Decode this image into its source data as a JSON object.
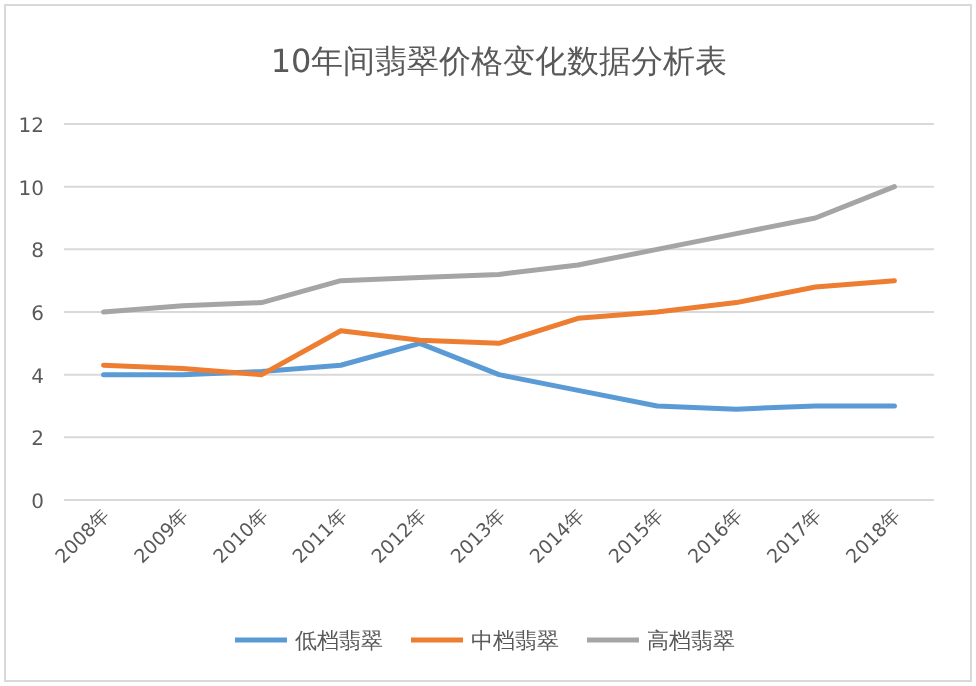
{
  "chart_data": {
    "type": "line",
    "title": "10年间翡翠价格变化数据分析表",
    "categories": [
      "2008年",
      "2009年",
      "2010年",
      "2011年",
      "2012年",
      "2013年",
      "2014年",
      "2015年",
      "2016年",
      "2017年",
      "2018年"
    ],
    "series": [
      {
        "name": "低档翡翠",
        "color": "#5b9bd5",
        "values": [
          4.0,
          4.0,
          4.1,
          4.3,
          5.0,
          4.0,
          3.5,
          3.0,
          2.9,
          3.0,
          3.0
        ]
      },
      {
        "name": "中档翡翠",
        "color": "#ed7d31",
        "values": [
          4.3,
          4.2,
          4.0,
          5.4,
          5.1,
          5.0,
          5.8,
          6.0,
          6.3,
          6.8,
          7.0
        ]
      },
      {
        "name": "高档翡翠",
        "color": "#a5a5a5",
        "values": [
          6.0,
          6.2,
          6.3,
          7.0,
          7.1,
          7.2,
          7.5,
          8.0,
          8.5,
          9.0,
          10.0
        ]
      }
    ],
    "ylim": [
      0,
      12
    ],
    "yticks": [
      0,
      2,
      4,
      6,
      8,
      10,
      12
    ],
    "grid": "y",
    "legend": "bottom",
    "marker": "none",
    "line_style": "solid"
  }
}
